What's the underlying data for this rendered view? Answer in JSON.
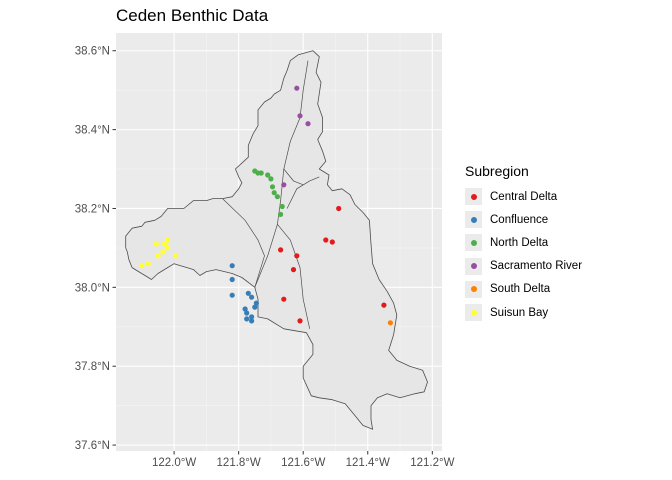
{
  "title": "Ceden Benthic Data",
  "chart_data": {
    "type": "scatter",
    "title": "Ceden Benthic Data",
    "xlabel": "",
    "ylabel": "",
    "xlim": [
      -122.18,
      -121.17
    ],
    "ylim": [
      37.585,
      38.645
    ],
    "x_ticks": [
      {
        "value": -122.0,
        "label": "122.0°W"
      },
      {
        "value": -121.8,
        "label": "121.8°W"
      },
      {
        "value": -121.6,
        "label": "121.6°W"
      },
      {
        "value": -121.4,
        "label": "121.4°W"
      },
      {
        "value": -121.2,
        "label": "121.2°W"
      }
    ],
    "y_ticks": [
      {
        "value": 37.6,
        "label": "37.6°N"
      },
      {
        "value": 37.8,
        "label": "37.8°N"
      },
      {
        "value": 38.0,
        "label": "38.0°N"
      },
      {
        "value": 38.2,
        "label": "38.2°N"
      },
      {
        "value": 38.4,
        "label": "38.4°N"
      },
      {
        "value": 38.6,
        "label": "38.6°N"
      }
    ],
    "grid": true,
    "legend": {
      "title": "Subregion",
      "placement": "right"
    },
    "colors": {
      "Central Delta": "#e41a1c",
      "Confluence": "#377eb8",
      "North Delta": "#4daf4a",
      "Sacramento River": "#984ea3",
      "South Delta": "#ff7f00",
      "Suisun Bay": "#ffff33"
    },
    "boundary": [
      [
        -121.615,
        38.59
      ],
      [
        -121.57,
        38.6
      ],
      [
        -121.55,
        38.585
      ],
      [
        -121.56,
        38.545
      ],
      [
        -121.545,
        38.52
      ],
      [
        -121.555,
        38.465
      ],
      [
        -121.54,
        38.43
      ],
      [
        -121.54,
        38.395
      ],
      [
        -121.555,
        38.375
      ],
      [
        -121.54,
        38.345
      ],
      [
        -121.53,
        38.32
      ],
      [
        -121.55,
        38.3
      ],
      [
        -121.52,
        38.285
      ],
      [
        -121.525,
        38.26
      ],
      [
        -121.51,
        38.245
      ],
      [
        -121.48,
        38.25
      ],
      [
        -121.455,
        38.235
      ],
      [
        -121.44,
        38.21
      ],
      [
        -121.415,
        38.19
      ],
      [
        -121.395,
        38.17
      ],
      [
        -121.39,
        38.11
      ],
      [
        -121.385,
        38.06
      ],
      [
        -121.365,
        38.02
      ],
      [
        -121.34,
        37.99
      ],
      [
        -121.32,
        37.96
      ],
      [
        -121.31,
        37.93
      ],
      [
        -121.32,
        37.88
      ],
      [
        -121.335,
        37.84
      ],
      [
        -121.31,
        37.815
      ],
      [
        -121.27,
        37.8
      ],
      [
        -121.23,
        37.79
      ],
      [
        -121.215,
        37.76
      ],
      [
        -121.225,
        37.735
      ],
      [
        -121.255,
        37.73
      ],
      [
        -121.3,
        37.72
      ],
      [
        -121.34,
        37.73
      ],
      [
        -121.37,
        37.72
      ],
      [
        -121.39,
        37.7
      ],
      [
        -121.39,
        37.665
      ],
      [
        -121.385,
        37.64
      ],
      [
        -121.415,
        37.65
      ],
      [
        -121.44,
        37.675
      ],
      [
        -121.47,
        37.705
      ],
      [
        -121.51,
        37.715
      ],
      [
        -121.55,
        37.72
      ],
      [
        -121.575,
        37.725
      ],
      [
        -121.6,
        37.77
      ],
      [
        -121.6,
        37.8
      ],
      [
        -121.57,
        37.83
      ],
      [
        -121.57,
        37.855
      ],
      [
        -121.59,
        37.885
      ],
      [
        -121.66,
        37.895
      ],
      [
        -121.71,
        37.92
      ],
      [
        -121.74,
        37.925
      ],
      [
        -121.74,
        37.97
      ],
      [
        -121.75,
        38.0
      ],
      [
        -121.79,
        38.025
      ],
      [
        -121.82,
        38.035
      ],
      [
        -121.87,
        38.045
      ],
      [
        -121.9,
        38.04
      ],
      [
        -121.92,
        38.03
      ],
      [
        -121.94,
        38.045
      ],
      [
        -121.96,
        38.05
      ],
      [
        -121.98,
        38.055
      ],
      [
        -122.0,
        38.06
      ],
      [
        -122.02,
        38.05
      ],
      [
        -122.05,
        38.035
      ],
      [
        -122.07,
        38.02
      ],
      [
        -122.09,
        38.03
      ],
      [
        -122.11,
        38.04
      ],
      [
        -122.13,
        38.05
      ],
      [
        -122.14,
        38.07
      ],
      [
        -122.145,
        38.09
      ],
      [
        -122.15,
        38.1
      ],
      [
        -122.15,
        38.13
      ],
      [
        -122.13,
        38.15
      ],
      [
        -122.1,
        38.155
      ],
      [
        -122.09,
        38.165
      ],
      [
        -122.06,
        38.17
      ],
      [
        -122.04,
        38.18
      ],
      [
        -122.02,
        38.2
      ],
      [
        -121.97,
        38.2
      ],
      [
        -121.94,
        38.22
      ],
      [
        -121.9,
        38.22
      ],
      [
        -121.88,
        38.225
      ],
      [
        -121.85,
        38.225
      ],
      [
        -121.82,
        38.23
      ],
      [
        -121.8,
        38.25
      ],
      [
        -121.79,
        38.265
      ],
      [
        -121.8,
        38.28
      ],
      [
        -121.81,
        38.3
      ],
      [
        -121.79,
        38.315
      ],
      [
        -121.77,
        38.33
      ],
      [
        -121.77,
        38.36
      ],
      [
        -121.755,
        38.39
      ],
      [
        -121.74,
        38.41
      ],
      [
        -121.74,
        38.45
      ],
      [
        -121.72,
        38.47
      ],
      [
        -121.7,
        38.48
      ],
      [
        -121.69,
        38.49
      ],
      [
        -121.67,
        38.5
      ],
      [
        -121.66,
        38.53
      ],
      [
        -121.65,
        38.55
      ],
      [
        -121.64,
        38.575
      ]
    ],
    "inner_lines": [
      [
        [
          -121.585,
          38.575
        ],
        [
          -121.6,
          38.5
        ],
        [
          -121.61,
          38.43
        ],
        [
          -121.64,
          38.37
        ],
        [
          -121.66,
          38.3
        ],
        [
          -121.67,
          38.22
        ],
        [
          -121.68,
          38.16
        ],
        [
          -121.71,
          38.08
        ],
        [
          -121.75,
          38.0
        ]
      ],
      [
        [
          -121.66,
          38.3
        ],
        [
          -121.63,
          38.27
        ],
        [
          -121.6,
          38.26
        ]
      ],
      [
        [
          -121.55,
          38.28
        ],
        [
          -121.58,
          38.27
        ],
        [
          -121.62,
          38.25
        ],
        [
          -121.65,
          38.2
        ]
      ],
      [
        [
          -121.68,
          38.16
        ],
        [
          -121.64,
          38.12
        ],
        [
          -121.61,
          38.05
        ],
        [
          -121.6,
          37.97
        ],
        [
          -121.58,
          37.895
        ]
      ],
      [
        [
          -121.85,
          38.225
        ],
        [
          -121.78,
          38.17
        ],
        [
          -121.74,
          38.12
        ],
        [
          -121.72,
          38.08
        ],
        [
          -121.75,
          38.0
        ]
      ]
    ],
    "series": [
      {
        "name": "Central Delta",
        "points": [
          [
            -121.49,
            38.2
          ],
          [
            -121.67,
            38.095
          ],
          [
            -121.62,
            38.08
          ],
          [
            -121.53,
            38.12
          ],
          [
            -121.51,
            38.115
          ],
          [
            -121.63,
            38.045
          ],
          [
            -121.66,
            37.97
          ],
          [
            -121.61,
            37.915
          ],
          [
            -121.35,
            37.955
          ]
        ]
      },
      {
        "name": "Confluence",
        "points": [
          [
            -121.82,
            38.055
          ],
          [
            -121.82,
            38.02
          ],
          [
            -121.82,
            37.98
          ],
          [
            -121.77,
            37.985
          ],
          [
            -121.76,
            37.975
          ],
          [
            -121.745,
            37.96
          ],
          [
            -121.75,
            37.95
          ],
          [
            -121.78,
            37.945
          ],
          [
            -121.775,
            37.935
          ],
          [
            -121.76,
            37.925
          ],
          [
            -121.775,
            37.92
          ],
          [
            -121.76,
            37.915
          ]
        ]
      },
      {
        "name": "North Delta",
        "points": [
          [
            -121.75,
            38.295
          ],
          [
            -121.73,
            38.29
          ],
          [
            -121.71,
            38.285
          ],
          [
            -121.7,
            38.275
          ],
          [
            -121.695,
            38.255
          ],
          [
            -121.69,
            38.24
          ],
          [
            -121.68,
            38.23
          ],
          [
            -121.665,
            38.205
          ],
          [
            -121.67,
            38.185
          ],
          [
            -121.74,
            38.29
          ]
        ]
      },
      {
        "name": "Sacramento River",
        "points": [
          [
            -121.62,
            38.505
          ],
          [
            -121.61,
            38.435
          ],
          [
            -121.585,
            38.415
          ],
          [
            -121.66,
            38.26
          ]
        ]
      },
      {
        "name": "South Delta",
        "points": [
          [
            -121.33,
            37.91
          ]
        ]
      },
      {
        "name": "Suisun Bay",
        "points": [
          [
            -122.1,
            38.055
          ],
          [
            -122.08,
            38.06
          ],
          [
            -122.055,
            38.11
          ],
          [
            -122.03,
            38.11
          ],
          [
            -122.02,
            38.12
          ],
          [
            -122.02,
            38.1
          ],
          [
            -122.035,
            38.09
          ],
          [
            -122.05,
            38.08
          ],
          [
            -121.995,
            38.08
          ]
        ]
      }
    ]
  }
}
